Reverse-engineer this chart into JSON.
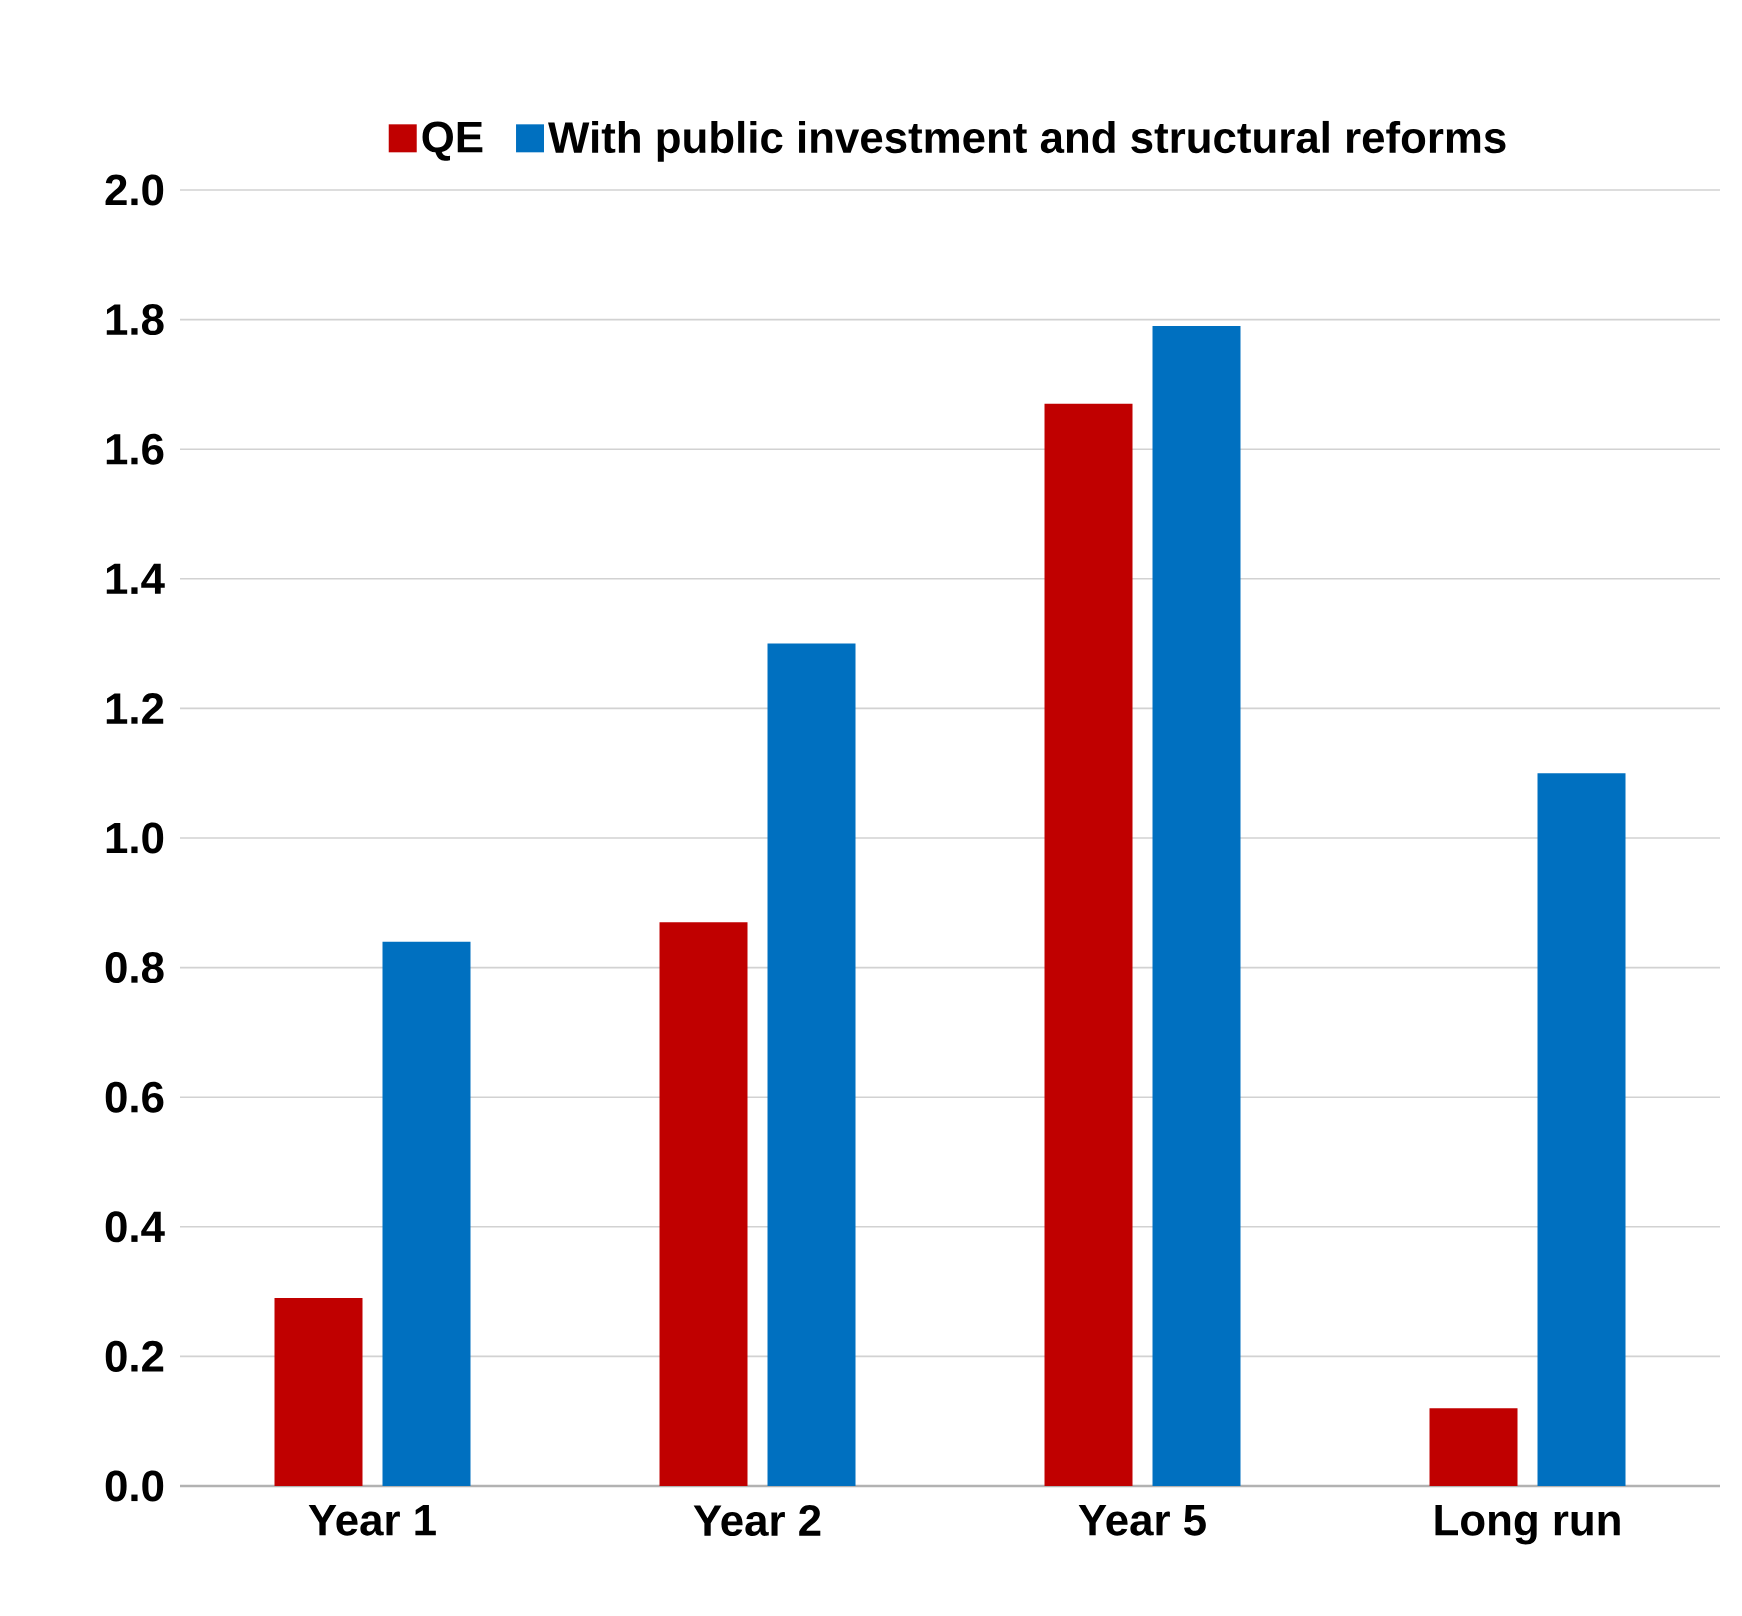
{
  "chart_data": {
    "type": "bar",
    "categories": [
      "Year 1",
      "Year 2",
      "Year 5",
      "Long run"
    ],
    "series": [
      {
        "name": "QE",
        "color": "#c00000",
        "values": [
          0.29,
          0.87,
          1.67,
          0.12
        ]
      },
      {
        "name": "With public investment and structural reforms",
        "color": "#0070c0",
        "values": [
          0.84,
          1.3,
          1.79,
          1.1
        ]
      }
    ],
    "ylim": [
      0,
      2
    ],
    "yticks": [
      {
        "value": 0,
        "label": "0.0"
      },
      {
        "value": 0.2,
        "label": "0.2"
      },
      {
        "value": 0.4,
        "label": "0.4"
      },
      {
        "value": 0.6,
        "label": "0.6"
      },
      {
        "value": 0.8,
        "label": "0.8"
      },
      {
        "value": 1,
        "label": "1.0"
      },
      {
        "value": 1.2,
        "label": "1.2"
      },
      {
        "value": 1.4,
        "label": "1.4"
      },
      {
        "value": 1.6,
        "label": "1.6"
      },
      {
        "value": 1.8,
        "label": "1.8"
      },
      {
        "value": 2,
        "label": "2.0"
      }
    ],
    "grid": "y",
    "legend": "top"
  }
}
